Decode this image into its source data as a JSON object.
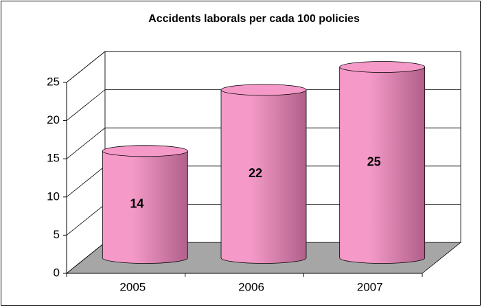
{
  "chart_data": {
    "type": "bar3d",
    "title": "Accidents laborals per cada 100 policies",
    "categories": [
      "2005",
      "2006",
      "2007"
    ],
    "values": [
      14,
      22,
      25
    ],
    "color": "#f59ac8",
    "ylim": [
      0,
      25
    ],
    "yticks": [
      0,
      5,
      10,
      15,
      20,
      25
    ],
    "grid": true
  }
}
